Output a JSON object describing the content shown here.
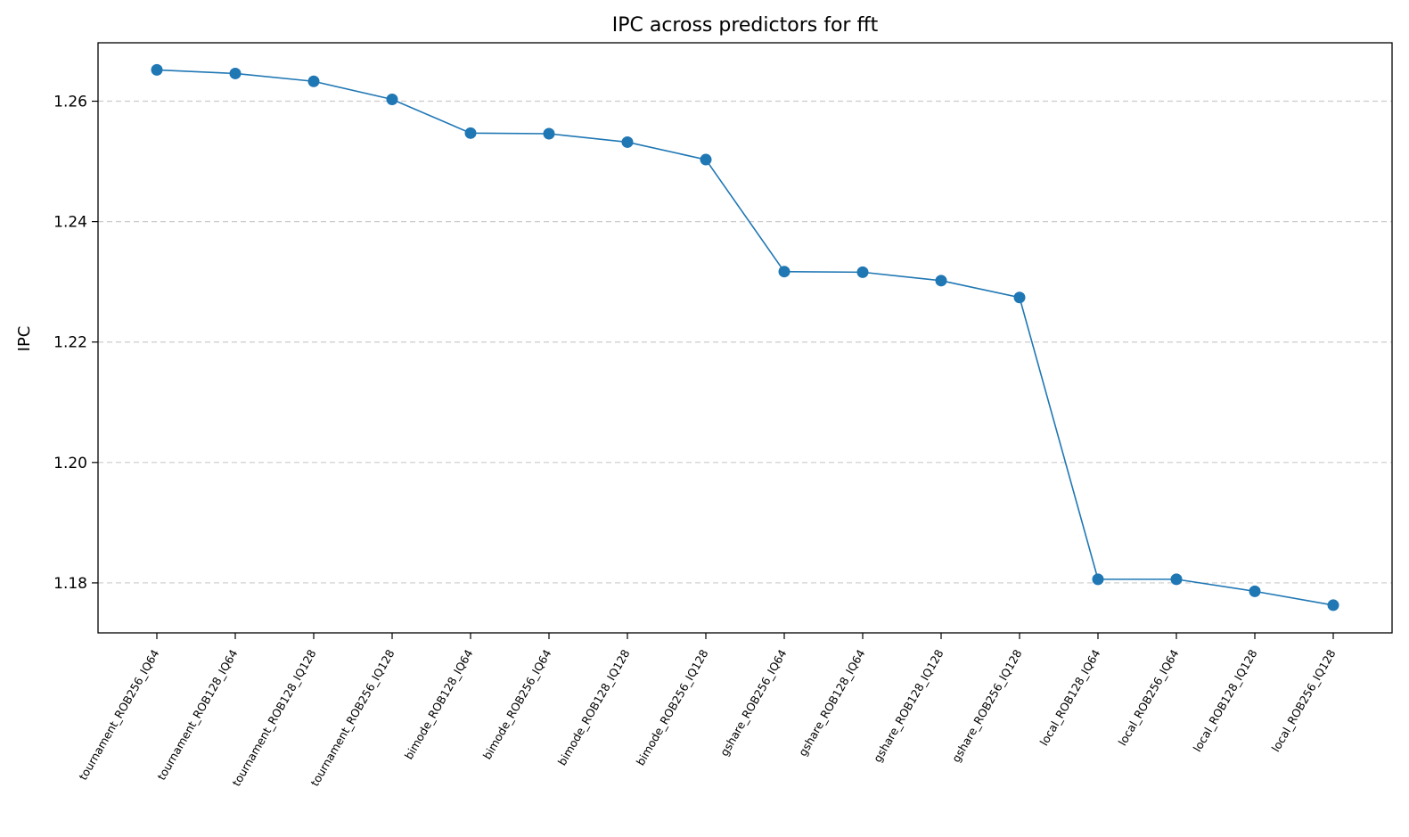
{
  "chart_data": {
    "type": "line",
    "title": "IPC across predictors for fft",
    "xlabel": "",
    "ylabel": "IPC",
    "categories": [
      "tournament_ROB256_IQ64",
      "tournament_ROB128_IQ64",
      "tournament_ROB128_IQ128",
      "tournament_ROB256_IQ128",
      "bimode_ROB128_IQ64",
      "bimode_ROB256_IQ64",
      "bimode_ROB128_IQ128",
      "bimode_ROB256_IQ128",
      "gshare_ROB256_IQ64",
      "gshare_ROB128_IQ64",
      "gshare_ROB128_IQ128",
      "gshare_ROB256_IQ128",
      "local_ROB128_IQ64",
      "local_ROB256_IQ64",
      "local_ROB128_IQ128",
      "local_ROB256_IQ128"
    ],
    "series": [
      {
        "values": [
          1.2652,
          1.2646,
          1.2633,
          1.2603,
          1.2547,
          1.2546,
          1.2532,
          1.2503,
          1.2317,
          1.2316,
          1.2302,
          1.2274,
          1.1806,
          1.1806,
          1.1786,
          1.1763
        ],
        "color": "#1f77b4"
      }
    ],
    "yticks": [
      "1.18",
      "1.20",
      "1.22",
      "1.24",
      "1.26"
    ],
    "ylim": [
      1.1717,
      1.2697
    ],
    "grid": "horizontal dashed",
    "legend": "none"
  }
}
